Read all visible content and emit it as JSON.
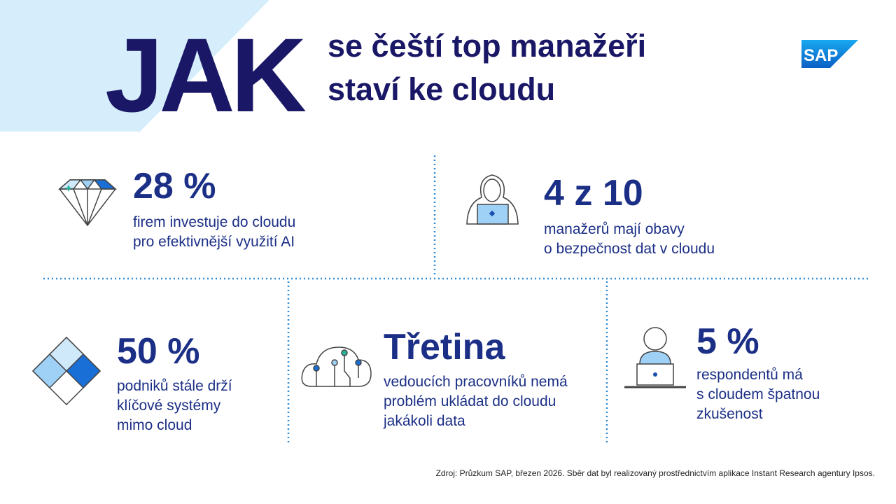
{
  "header": {
    "big": "JAK",
    "title": [
      "se čeští top manažeři",
      "staví ke cloudu"
    ],
    "logo": "SAP"
  },
  "stats": [
    {
      "value": "28 %",
      "lines": [
        "firem investuje do cloudu",
        "pro efektivnější využití AI"
      ]
    },
    {
      "value": "4 z 10",
      "lines": [
        "manažerů mají obavy",
        "o bezpečnost dat v cloudu"
      ]
    },
    {
      "value": "50 %",
      "lines": [
        "podniků stále drží",
        "klíčové systémy",
        "mimo cloud"
      ]
    },
    {
      "value": "Třetina",
      "lines": [
        "vedoucích pracovníků nemá",
        "problém ukládat do cloudu",
        "jakákoli data"
      ]
    },
    {
      "value": "5 %",
      "lines": [
        "respondentů má",
        "s cloudem špatnou",
        "zkušenost"
      ]
    }
  ],
  "footer": {
    "source": "Zdroj: Průzkum SAP, březen 2026. Sběr dat byl realizovaný prostřednictvím aplikace Instant Research agentury Ipsos."
  }
}
